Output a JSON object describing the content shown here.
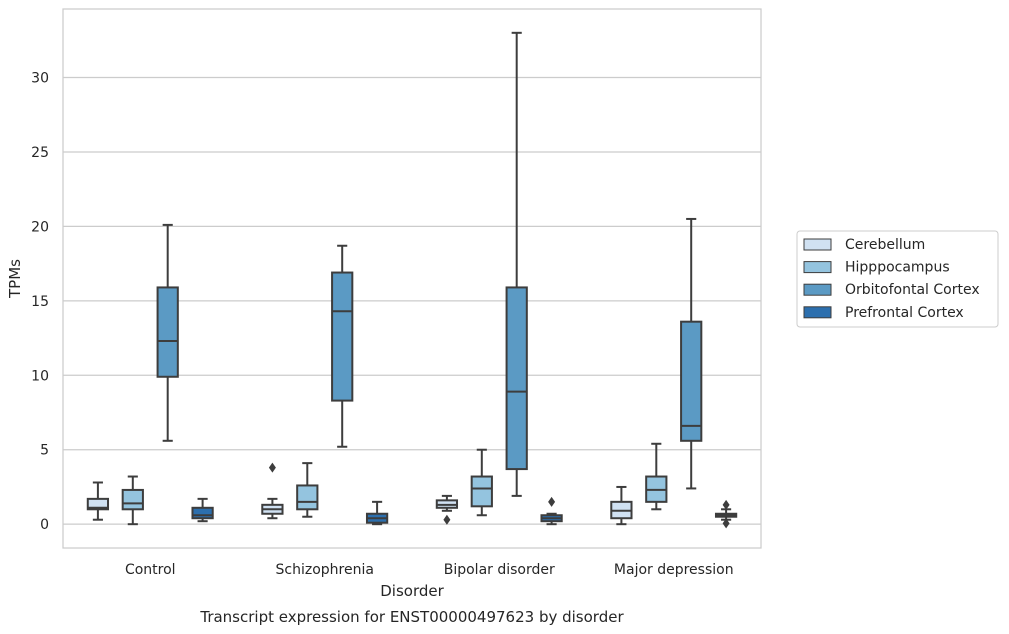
{
  "chart_data": {
    "type": "boxplot",
    "caption": "Transcript expression for ENST00000497623 by disorder",
    "xlabel": "Disorder",
    "ylabel": "TPMs",
    "ylim": [
      -1.6,
      34.6
    ],
    "yticks": [
      0,
      5,
      10,
      15,
      20,
      25,
      30
    ],
    "grid": true,
    "legend_placement": "right",
    "categories": [
      "Control",
      "Schizophrenia",
      "Bipolar disorder",
      "Major depression"
    ],
    "series": [
      {
        "name": "Cerebellum",
        "color": "#d0e1f2",
        "boxes": [
          {
            "whislo": 0.3,
            "q1": 1.0,
            "med": 1.1,
            "q3": 1.7,
            "whishi": 2.8,
            "fliers": []
          },
          {
            "whislo": 0.4,
            "q1": 0.7,
            "med": 1.0,
            "q3": 1.3,
            "whishi": 1.7,
            "fliers": [
              3.8
            ]
          },
          {
            "whislo": 0.9,
            "q1": 1.1,
            "med": 1.3,
            "q3": 1.6,
            "whishi": 1.9,
            "fliers": [
              0.3
            ]
          },
          {
            "whislo": 0.0,
            "q1": 0.4,
            "med": 0.9,
            "q3": 1.5,
            "whishi": 2.5,
            "fliers": []
          }
        ]
      },
      {
        "name": "Hipppocampus",
        "color": "#94c4df",
        "boxes": [
          {
            "whislo": 0.0,
            "q1": 1.0,
            "med": 1.4,
            "q3": 2.3,
            "whishi": 3.2,
            "fliers": []
          },
          {
            "whislo": 0.5,
            "q1": 1.0,
            "med": 1.5,
            "q3": 2.6,
            "whishi": 4.1,
            "fliers": []
          },
          {
            "whislo": 0.6,
            "q1": 1.2,
            "med": 2.4,
            "q3": 3.2,
            "whishi": 5.0,
            "fliers": []
          },
          {
            "whislo": 1.0,
            "q1": 1.5,
            "med": 2.3,
            "q3": 3.2,
            "whishi": 5.4,
            "fliers": []
          }
        ]
      },
      {
        "name": "Orbitofontal Cortex",
        "color": "#5b9ac4",
        "boxes": [
          {
            "whislo": 5.6,
            "q1": 9.9,
            "med": 12.3,
            "q3": 15.9,
            "whishi": 20.1,
            "fliers": []
          },
          {
            "whislo": 5.2,
            "q1": 8.3,
            "med": 14.3,
            "q3": 16.9,
            "whishi": 18.7,
            "fliers": []
          },
          {
            "whislo": 1.9,
            "q1": 3.7,
            "med": 8.9,
            "q3": 15.9,
            "whishi": 33.0,
            "fliers": []
          },
          {
            "whislo": 2.4,
            "q1": 5.6,
            "med": 6.6,
            "q3": 13.6,
            "whishi": 20.5,
            "fliers": []
          }
        ]
      },
      {
        "name": "Prefrontal Cortex",
        "color": "#2c6fae",
        "boxes": [
          {
            "whislo": 0.2,
            "q1": 0.4,
            "med": 0.6,
            "q3": 1.1,
            "whishi": 1.7,
            "fliers": []
          },
          {
            "whislo": 0.0,
            "q1": 0.1,
            "med": 0.4,
            "q3": 0.7,
            "whishi": 1.5,
            "fliers": []
          },
          {
            "whislo": 0.0,
            "q1": 0.2,
            "med": 0.4,
            "q3": 0.6,
            "whishi": 0.7,
            "fliers": [
              1.5
            ]
          },
          {
            "whislo": 0.3,
            "q1": 0.5,
            "med": 0.6,
            "q3": 0.7,
            "whishi": 1.0,
            "fliers": [
              1.3,
              0.05
            ]
          }
        ]
      }
    ]
  }
}
